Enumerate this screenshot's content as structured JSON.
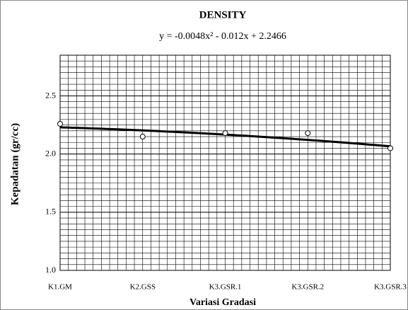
{
  "chart_data": {
    "type": "scatter",
    "title": "DENSITY",
    "x_label": "Variasi Gradasi",
    "y_label": "Kepadatan (gr/cc)",
    "categories": [
      "K1.GM",
      "K2.GSS",
      "K3.GSR.1",
      "K3.GSR.2",
      "K3.GSR.3"
    ],
    "values": [
      2.26,
      2.15,
      2.18,
      2.18,
      2.05
    ],
    "color": "#000000",
    "trendline": {
      "label": "y = -0.0048x² - 0.012x + 2.2466",
      "coefficients": [
        -0.0048,
        -0.012,
        2.2466
      ]
    },
    "ylim": [
      1.0,
      2.85
    ],
    "yticks": [
      {
        "value": 1.0,
        "label": "1.0"
      },
      1.5,
      {
        "value": 2.0,
        "label": "2.0"
      },
      2.5
    ],
    "grid": true
  }
}
